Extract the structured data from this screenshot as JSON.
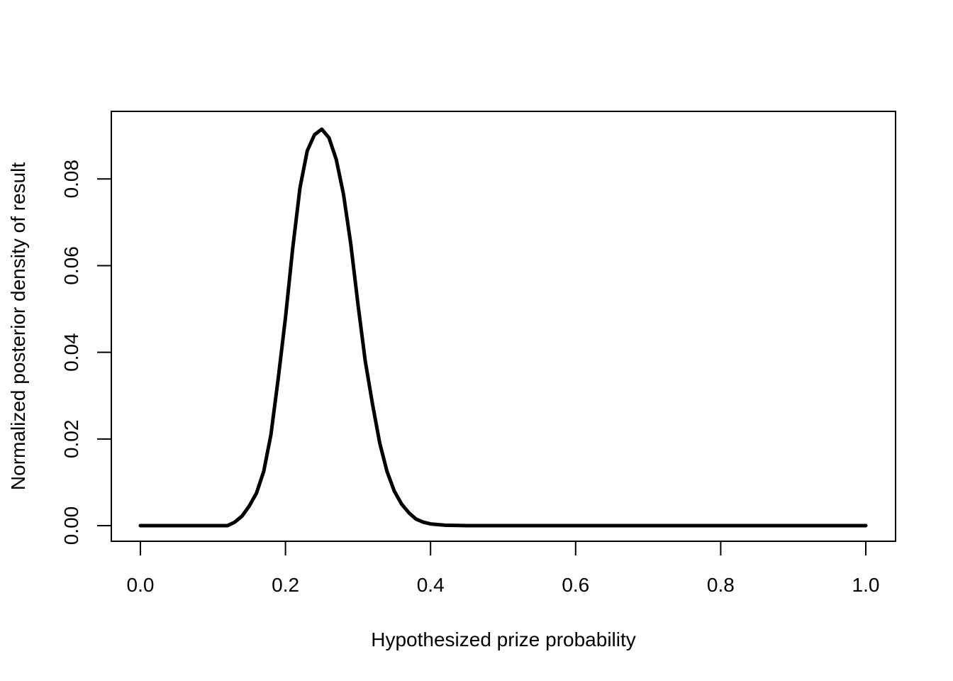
{
  "chart_data": {
    "type": "line",
    "title": "",
    "xlabel": "Hypothesized prize probability",
    "ylabel": "Normalized posterior density of result",
    "xlim": [
      0.0,
      1.0
    ],
    "ylim": [
      0.0,
      0.092
    ],
    "xticks": [
      0.0,
      0.2,
      0.4,
      0.6,
      0.8,
      1.0
    ],
    "xtick_labels": [
      "0.0",
      "0.2",
      "0.4",
      "0.6",
      "0.8",
      "1.0"
    ],
    "yticks": [
      0.0,
      0.02,
      0.04,
      0.06,
      0.08
    ],
    "ytick_labels": [
      "0.00",
      "0.02",
      "0.04",
      "0.06",
      "0.08"
    ],
    "grid": false,
    "legend": "none",
    "line_color": "#000000",
    "series": [
      {
        "x": [
          0.0,
          0.02,
          0.04,
          0.06,
          0.08,
          0.1,
          0.12,
          0.13,
          0.14,
          0.15,
          0.16,
          0.17,
          0.18,
          0.19,
          0.2,
          0.21,
          0.22,
          0.23,
          0.24,
          0.25,
          0.26,
          0.27,
          0.28,
          0.29,
          0.3,
          0.31,
          0.32,
          0.33,
          0.34,
          0.35,
          0.36,
          0.37,
          0.38,
          0.39,
          0.4,
          0.42,
          0.45,
          0.5,
          0.6,
          0.7,
          0.8,
          0.9,
          1.0
        ],
        "y": [
          0.0,
          0.0,
          0.0,
          0.0,
          0.0,
          0.0,
          0.0,
          0.0008,
          0.0022,
          0.0045,
          0.0075,
          0.0125,
          0.021,
          0.034,
          0.048,
          0.064,
          0.078,
          0.0865,
          0.0902,
          0.0915,
          0.0895,
          0.0845,
          0.0765,
          0.065,
          0.051,
          0.038,
          0.028,
          0.019,
          0.0125,
          0.008,
          0.005,
          0.003,
          0.0015,
          0.0008,
          0.0004,
          0.0001,
          0.0,
          0.0,
          0.0,
          0.0,
          0.0,
          0.0,
          0.0
        ]
      }
    ]
  }
}
